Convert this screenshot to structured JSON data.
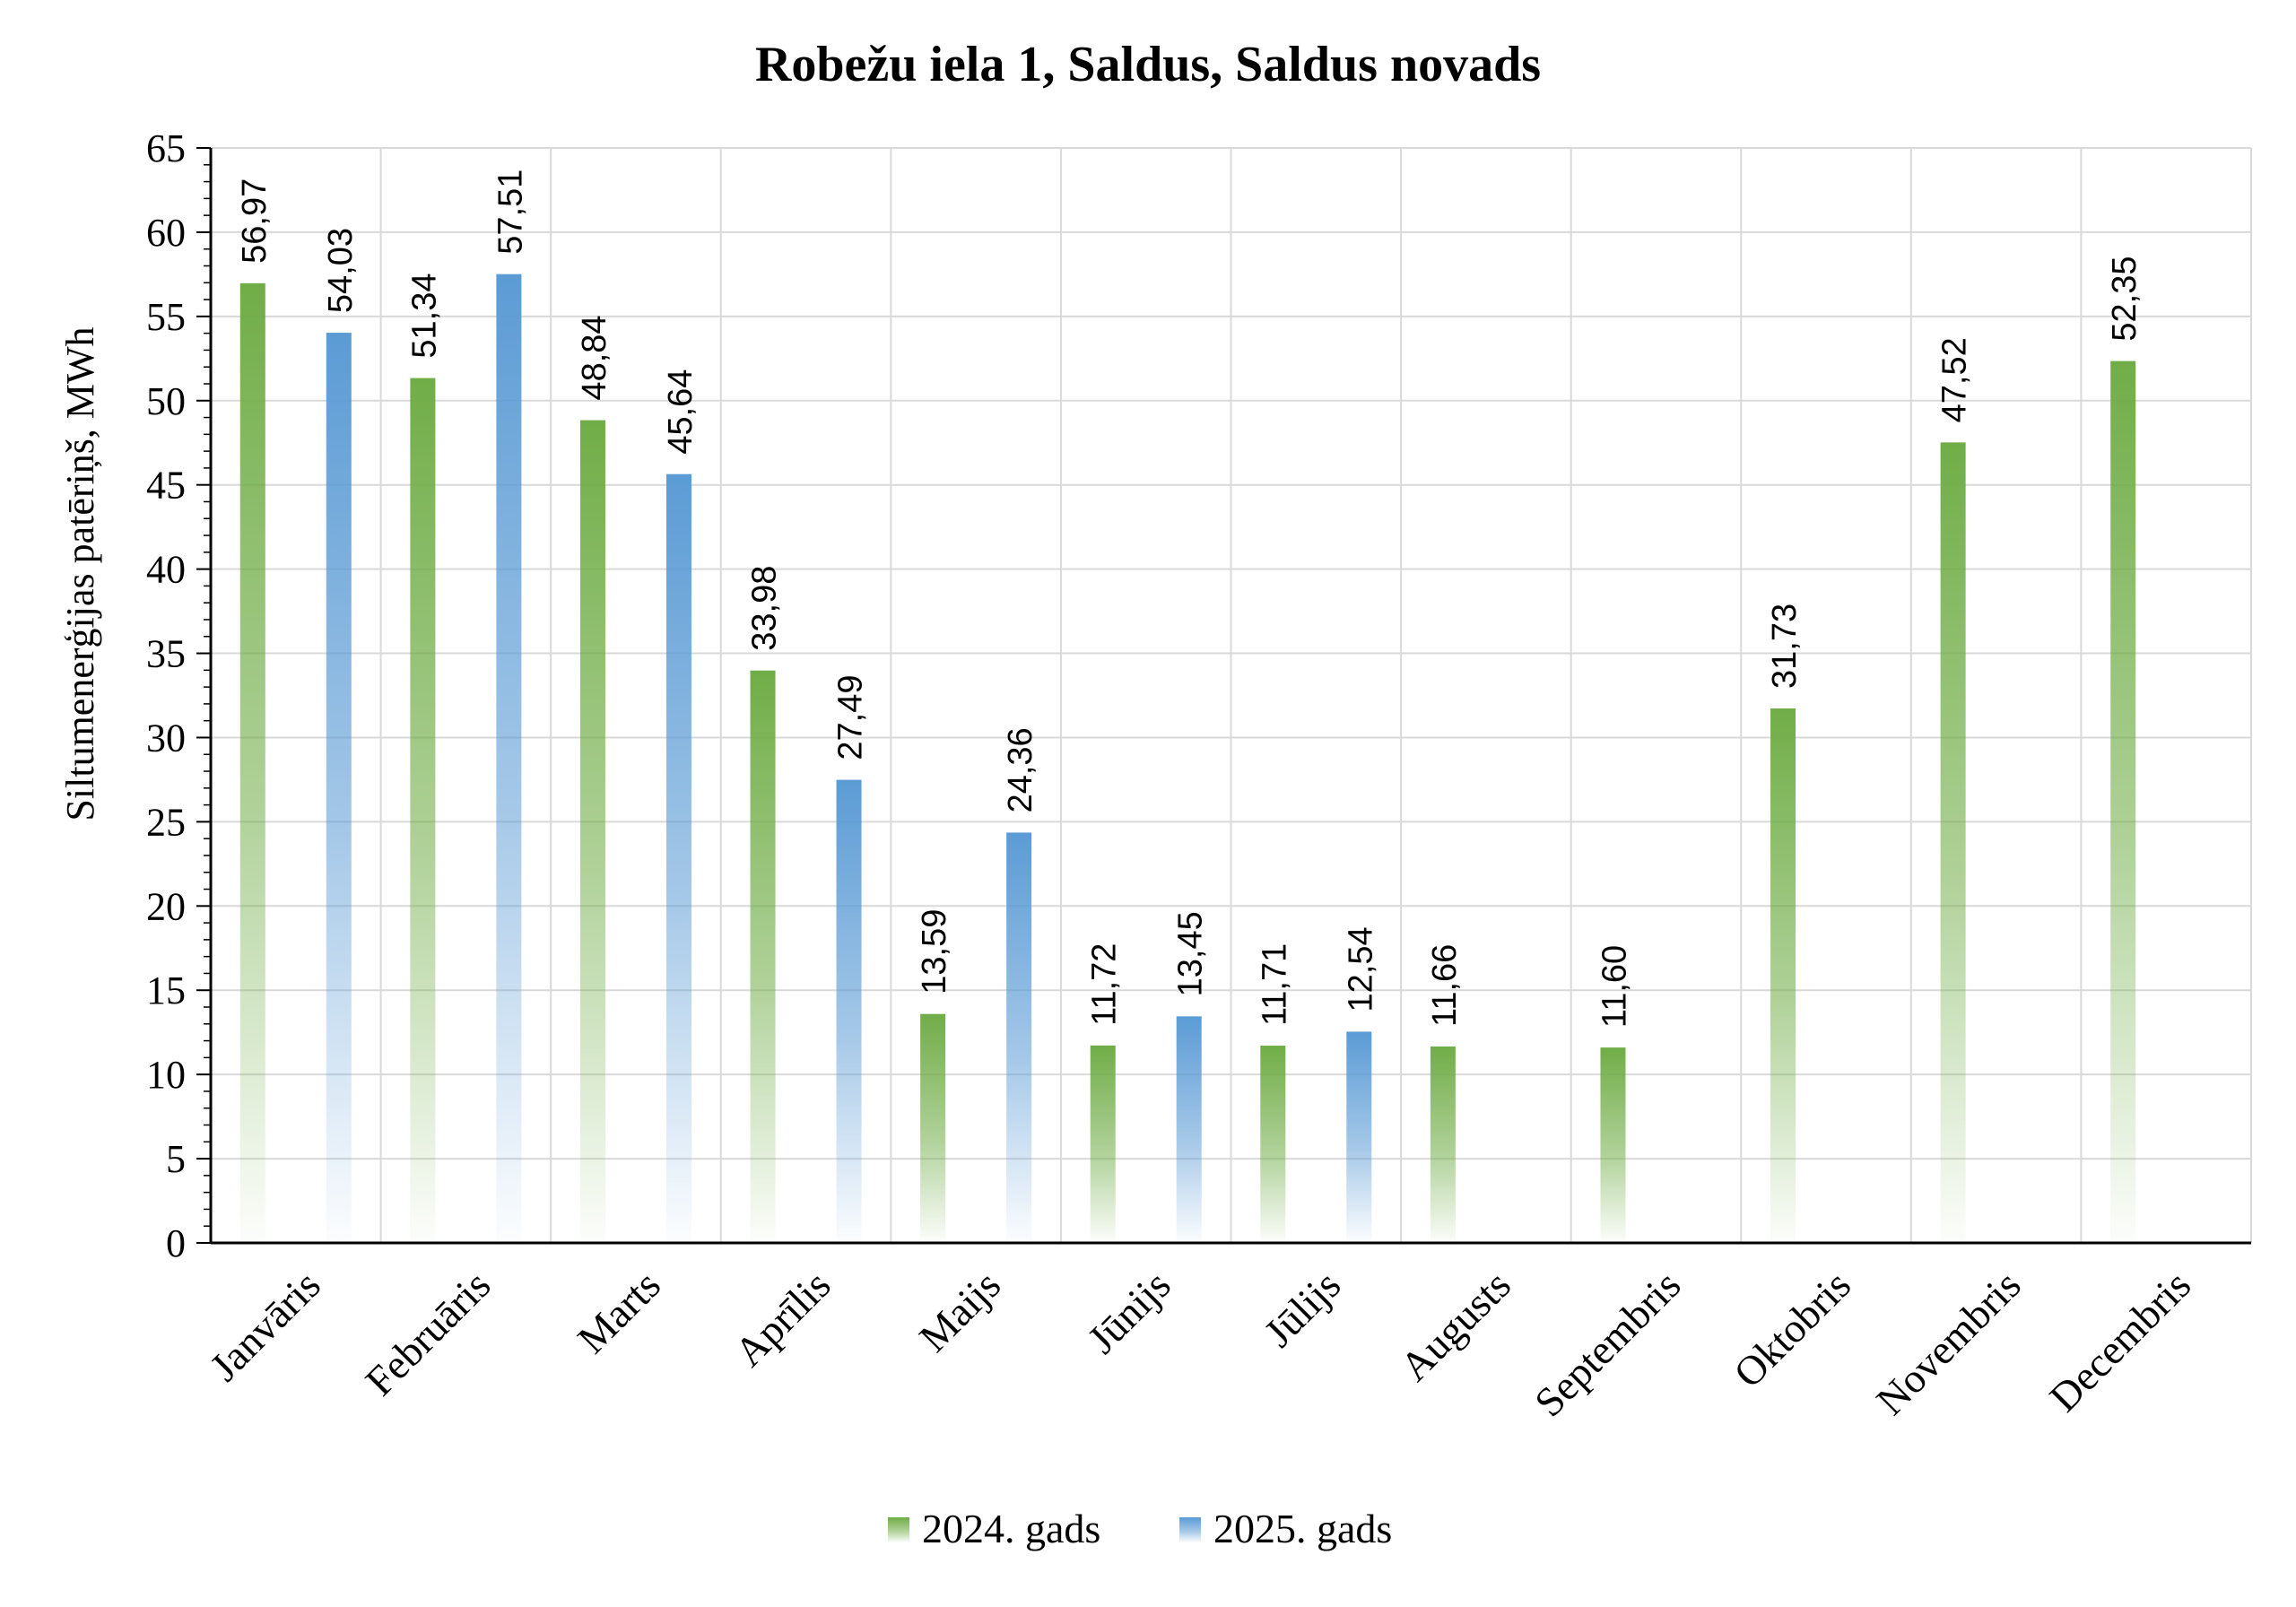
{
  "chart_data": {
    "type": "bar",
    "title": "Robežu iela 1, Saldus, Saldus novads",
    "xlabel": "",
    "ylabel": "Siltumenerģijas patēriņš, MWh",
    "ylim": [
      0,
      65
    ],
    "ytick_step": 5,
    "grid": true,
    "legend_position": "bottom",
    "categories": [
      "Janvāris",
      "Februāris",
      "Marts",
      "Aprīlis",
      "Maijs",
      "Jūnijs",
      "Jūlijs",
      "Augusts",
      "Septembris",
      "Oktobris",
      "Novembris",
      "Decembris"
    ],
    "series": [
      {
        "name": "2024. gads",
        "color": "#70ad47",
        "values": [
          56.97,
          51.34,
          48.84,
          33.98,
          13.59,
          11.72,
          11.71,
          11.66,
          11.6,
          31.73,
          47.52,
          52.35
        ],
        "labels": [
          "56,97",
          "51,34",
          "48,84",
          "33,98",
          "13,59",
          "11,72",
          "11,71",
          "11,66",
          "11,60",
          "31,73",
          "47,52",
          "52,35"
        ]
      },
      {
        "name": "2025. gads",
        "color": "#5b9bd5",
        "values": [
          54.03,
          57.51,
          45.64,
          27.49,
          24.36,
          13.45,
          12.54,
          null,
          null,
          null,
          null,
          null
        ],
        "labels": [
          "54,03",
          "57,51",
          "45,64",
          "27,49",
          "24,36",
          "13,45",
          "12,54",
          "",
          "",
          "",
          "",
          ""
        ]
      }
    ]
  }
}
